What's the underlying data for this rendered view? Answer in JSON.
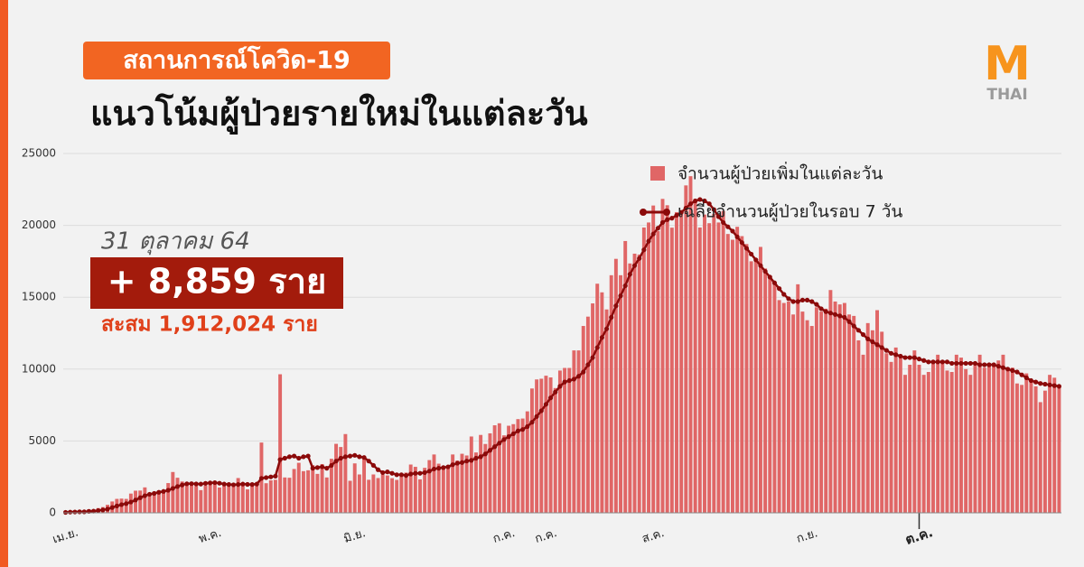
{
  "header": {
    "tag": "สถานการณ์โควิด-19",
    "title": "แนวโน้มผู้ป่วยรายใหม่ในแต่ละวัน",
    "logo_mark": "M",
    "logo_text": "THAI"
  },
  "summary": {
    "date": "31 ตุลาคม 64",
    "new_cases": "+ 8,859 ราย",
    "cumulative": "สะสม 1,912,024 ราย"
  },
  "chart_data": {
    "type": "bar-line",
    "categories": [
      "เม.ย.",
      null,
      null,
      null,
      null,
      null,
      null,
      null,
      null,
      null,
      null,
      null,
      null,
      null,
      null,
      null,
      null,
      null,
      null,
      null,
      null,
      null,
      null,
      null,
      null,
      null,
      null,
      null,
      null,
      null,
      null,
      "พ.ค.",
      null,
      null,
      null,
      null,
      null,
      null,
      null,
      null,
      null,
      null,
      null,
      null,
      null,
      null,
      null,
      null,
      null,
      null,
      null,
      null,
      null,
      null,
      null,
      null,
      null,
      null,
      null,
      null,
      null,
      null,
      "มิ.ย.",
      null,
      null,
      null,
      null,
      null,
      null,
      null,
      null,
      null,
      null,
      null,
      null,
      null,
      null,
      null,
      null,
      null,
      null,
      null,
      null,
      null,
      null,
      null,
      null,
      null,
      null,
      null,
      null,
      null,
      null,
      null,
      "ก.ค.",
      null,
      null,
      null,
      null,
      null,
      null,
      null,
      null,
      "ก.ค.",
      null,
      null,
      null,
      null,
      null,
      null,
      null,
      null,
      null,
      null,
      null,
      null,
      null,
      null,
      null,
      null,
      null,
      null,
      null,
      null,
      null,
      null,
      "ส.ค.",
      null,
      null,
      null,
      null,
      null,
      null,
      null,
      null,
      null,
      null,
      null,
      null,
      null,
      null,
      null,
      null,
      null,
      null,
      null,
      null,
      null,
      null,
      null,
      null,
      null,
      null,
      null,
      null,
      null,
      null,
      null,
      null,
      "ก.ย.",
      null,
      null,
      null,
      null,
      null,
      null,
      null,
      null,
      null,
      null,
      null,
      null,
      null,
      null,
      null,
      null,
      null,
      null,
      null,
      null,
      null,
      null,
      null,
      "ต.ค.",
      null,
      null,
      null,
      null,
      null,
      null,
      null,
      null,
      null,
      null,
      null,
      null,
      null,
      null,
      null,
      null,
      null,
      null,
      null,
      null,
      null,
      null,
      null,
      null,
      null,
      null,
      null,
      null,
      null,
      null
    ],
    "series": [
      {
        "name": "จำนวนผู้ป่วยเพิ่มในแต่ละวัน",
        "type": "bar",
        "color": "#e06666",
        "values": [
          30,
          80,
          90,
          100,
          60,
          250,
          190,
          330,
          400,
          560,
          790,
          970,
          990,
          970,
          1340,
          1540,
          1550,
          1770,
          1390,
          1440,
          1460,
          1470,
          2070,
          2840,
          2440,
          2180,
          2050,
          2010,
          1870,
          1580,
          1890,
          2040,
          2110,
          1760,
          1910,
          2040,
          2050,
          2420,
          2100,
          1630,
          1920,
          1980,
          4890,
          2060,
          2260,
          2300,
          9640,
          2460,
          2440,
          3050,
          3480,
          2900,
          2960,
          3320,
          2710,
          3390,
          2460,
          3760,
          4800,
          4580,
          5480,
          2230,
          3440,
          2670,
          3890,
          2300,
          2670,
          2420,
          2660,
          2600,
          2410,
          2290,
          2640,
          2800,
          3360,
          3200,
          2330,
          3130,
          3670,
          4060,
          3420,
          3170,
          3200,
          4060,
          3640,
          4110,
          3990,
          5310,
          4200,
          5420,
          4790,
          5530,
          6090,
          6230,
          5390,
          6060,
          6170,
          6520,
          6560,
          7060,
          8650,
          9280,
          9330,
          9540,
          9420,
          8680,
          9900,
          10080,
          10080,
          11300,
          11300,
          13000,
          13650,
          14570,
          15940,
          15340,
          14150,
          16530,
          17670,
          16530,
          18910,
          17350,
          18030,
          17970,
          19850,
          20200,
          21380,
          19600,
          21840,
          21400,
          19840,
          20920,
          21040,
          22780,
          23420,
          21840,
          19850,
          20750,
          20150,
          20800,
          20200,
          21000,
          19400,
          19000,
          19900,
          19250,
          18700,
          17500,
          17650,
          18500,
          17000,
          16500,
          16000,
          14800,
          14600,
          14700,
          13800,
          15900,
          14000,
          13400,
          13000,
          14300,
          14000,
          14200,
          15500,
          14700,
          14500,
          14600,
          13800,
          13700,
          12000,
          11000,
          13200,
          12700,
          14100,
          12600,
          11100,
          10500,
          11500,
          10800,
          9600,
          10300,
          11300,
          10300,
          9600,
          9800,
          10600,
          11000,
          10500,
          9900,
          9800,
          11000,
          10800,
          10000,
          9600,
          10300,
          11000,
          10100,
          10300,
          10200,
          10600,
          11000,
          10000,
          10100,
          9000,
          8900,
          9700,
          9300,
          8800,
          7700,
          8500,
          9600,
          9400,
          8859
        ]
      },
      {
        "name": "เฉลี่ยจำนวนผู้ป่วยในรอบ 7 วัน",
        "type": "line",
        "color": "#8b0a0a",
        "values": [
          30,
          50,
          60,
          70,
          70,
          100,
          120,
          160,
          200,
          260,
          370,
          480,
          570,
          640,
          750,
          890,
          1050,
          1190,
          1290,
          1350,
          1430,
          1490,
          1570,
          1700,
          1830,
          1940,
          2020,
          2030,
          2010,
          2000,
          2050,
          2080,
          2100,
          2060,
          2000,
          1970,
          1950,
          1970,
          2000,
          1980,
          1970,
          2000,
          2400,
          2450,
          2500,
          2550,
          3700,
          3800,
          3900,
          3950,
          3800,
          3900,
          3950,
          3100,
          3150,
          3200,
          3100,
          3300,
          3600,
          3800,
          3900,
          3950,
          4000,
          3900,
          3850,
          3600,
          3300,
          3000,
          2800,
          2850,
          2750,
          2650,
          2650,
          2600,
          2700,
          2750,
          2750,
          2800,
          2900,
          3050,
          3100,
          3150,
          3200,
          3350,
          3450,
          3500,
          3600,
          3650,
          3800,
          3900,
          4100,
          4350,
          4600,
          4850,
          5100,
          5300,
          5500,
          5700,
          5800,
          6000,
          6300,
          6700,
          7100,
          7550,
          8000,
          8400,
          8800,
          9100,
          9200,
          9300,
          9500,
          9800,
          10300,
          10800,
          11500,
          12200,
          12800,
          13600,
          14400,
          15100,
          15800,
          16600,
          17200,
          17700,
          18300,
          18900,
          19400,
          19800,
          20200,
          20400,
          20500,
          20700,
          20900,
          21200,
          21500,
          21700,
          21800,
          21700,
          21500,
          21100,
          20600,
          20200,
          19900,
          19600,
          19200,
          18800,
          18400,
          18000,
          17600,
          17200,
          16800,
          16400,
          16000,
          15600,
          15200,
          14900,
          14700,
          14700,
          14800,
          14800,
          14700,
          14500,
          14200,
          14000,
          13900,
          13800,
          13700,
          13600,
          13300,
          13000,
          12700,
          12400,
          12100,
          11900,
          11700,
          11500,
          11300,
          11100,
          11000,
          10900,
          10800,
          10800,
          10800,
          10700,
          10600,
          10500,
          10500,
          10500,
          10500,
          10500,
          10400,
          10400,
          10400,
          10400,
          10400,
          10400,
          10300,
          10300,
          10300,
          10300,
          10200,
          10100,
          10000,
          9900,
          9800,
          9600,
          9400,
          9200,
          9100,
          9000,
          8950,
          8900,
          8850,
          8800
        ]
      }
    ],
    "ylim": [
      0,
      25000
    ],
    "yticks": [
      0,
      5000,
      10000,
      15000,
      20000,
      25000
    ],
    "grid": true
  }
}
